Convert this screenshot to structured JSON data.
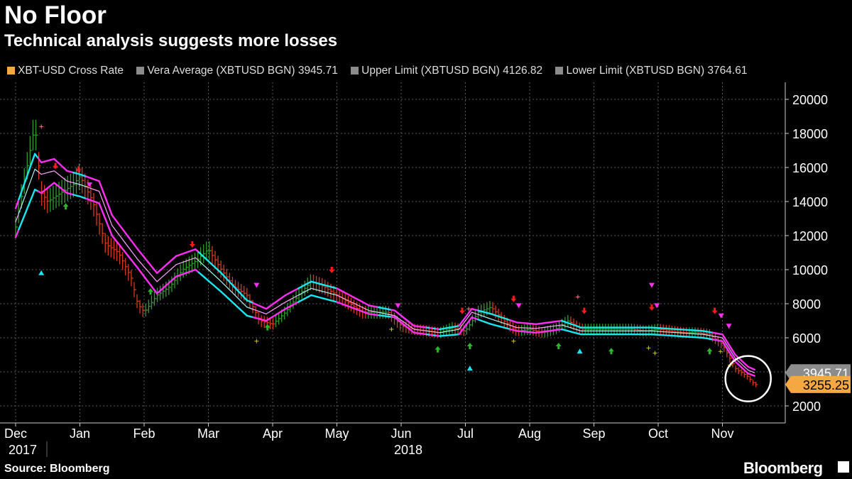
{
  "chart_data": {
    "type": "line",
    "title": "No Floor",
    "subtitle": "Technical analysis suggests more losses",
    "source": "Source: Bloomberg",
    "brand": "Bloomberg",
    "legend": [
      {
        "label": "XBT-USD Cross Rate",
        "color": "#f5a742"
      },
      {
        "label": "Vera Average (XBTUSD BGN) 3945.71",
        "color": "#8c8c8c"
      },
      {
        "label": "Upper Limit (XBTUSD BGN) 4126.82",
        "color": "#8c8c8c"
      },
      {
        "label": "Lower Limit (XBTUSD BGN) 3764.61",
        "color": "#8c8c8c"
      }
    ],
    "y_ticks": [
      2000,
      4000,
      6000,
      8000,
      10000,
      12000,
      14000,
      16000,
      18000,
      20000
    ],
    "y_tick_labels": [
      "2000",
      "4000",
      "6000",
      "8000",
      "10000",
      "12000",
      "14000",
      "16000",
      "18000",
      "20000"
    ],
    "ylim": [
      1000,
      21000
    ],
    "x_range": [
      0,
      11.6
    ],
    "x_months": [
      {
        "label": "Dec",
        "pos": 0
      },
      {
        "label": "Jan",
        "pos": 1
      },
      {
        "label": "Feb",
        "pos": 2
      },
      {
        "label": "Mar",
        "pos": 3
      },
      {
        "label": "Apr",
        "pos": 4
      },
      {
        "label": "May",
        "pos": 5
      },
      {
        "label": "Jun",
        "pos": 6
      },
      {
        "label": "Jul",
        "pos": 7
      },
      {
        "label": "Aug",
        "pos": 8
      },
      {
        "label": "Sep",
        "pos": 9
      },
      {
        "label": "Oct",
        "pos": 10
      },
      {
        "label": "Nov",
        "pos": 11
      }
    ],
    "year_labels": [
      {
        "label": "2017",
        "pos": 0
      },
      {
        "label": "2018",
        "pos": 6
      }
    ],
    "last_values": [
      {
        "label": "3945.71",
        "value": 3945.71,
        "color": "#8c8c8c"
      },
      {
        "label": "3255.25",
        "value": 3255.25,
        "color": "#f5a742"
      }
    ],
    "circle_highlight": {
      "x": 11.4,
      "y": 3600
    },
    "colors": {
      "upper": "#ff2ef2",
      "vera": "#ffa0ff",
      "lower": "#ff2ef2",
      "upper_bull": "#19e6ee",
      "vera_bull": "#a8f5f5",
      "lower_bull": "#19e6ee",
      "up_bar": "#2e9e2e",
      "down_bar": "#d93a1e",
      "grid": "#5a5a5a"
    },
    "series": [
      {
        "name": "Upper Limit",
        "x": [
          0,
          0.3,
          0.4,
          0.6,
          0.8,
          1.0,
          1.3,
          1.5,
          1.9,
          2.2,
          2.5,
          2.8,
          3.2,
          3.6,
          3.9,
          4.2,
          4.6,
          5.0,
          5.5,
          5.9,
          6.2,
          6.6,
          6.9,
          7.1,
          7.4,
          7.8,
          8.1,
          8.5,
          8.8,
          9.2,
          9.6,
          9.9,
          10.3,
          10.7,
          11.0,
          11.2,
          11.4,
          11.5
        ],
        "values": [
          13600,
          16800,
          16300,
          16500,
          15800,
          15600,
          15200,
          13200,
          11200,
          9800,
          10800,
          11200,
          9800,
          8200,
          7700,
          8500,
          9300,
          8900,
          7900,
          7600,
          6700,
          6500,
          6700,
          7700,
          7400,
          6900,
          6800,
          7000,
          6600,
          6600,
          6600,
          6600,
          6500,
          6400,
          6200,
          5000,
          4300,
          4130
        ]
      },
      {
        "name": "Vera Average",
        "x": [
          0,
          0.3,
          0.4,
          0.6,
          0.8,
          1.0,
          1.3,
          1.5,
          1.9,
          2.2,
          2.5,
          2.8,
          3.2,
          3.6,
          3.9,
          4.2,
          4.6,
          5.0,
          5.5,
          5.9,
          6.2,
          6.6,
          6.9,
          7.1,
          7.4,
          7.8,
          8.1,
          8.5,
          8.8,
          9.2,
          9.6,
          9.9,
          10.3,
          10.7,
          11.0,
          11.2,
          11.4,
          11.5
        ],
        "values": [
          12800,
          15900,
          15600,
          15800,
          15200,
          15000,
          14600,
          12600,
          10600,
          9300,
          10300,
          10700,
          9300,
          7800,
          7400,
          8100,
          8900,
          8500,
          7600,
          7300,
          6500,
          6300,
          6500,
          7500,
          7100,
          6600,
          6550,
          6750,
          6400,
          6400,
          6400,
          6400,
          6300,
          6200,
          6000,
          4800,
          4100,
          3946
        ]
      },
      {
        "name": "Lower Limit",
        "x": [
          0,
          0.3,
          0.4,
          0.6,
          0.8,
          1.0,
          1.3,
          1.5,
          1.9,
          2.2,
          2.5,
          2.8,
          3.2,
          3.6,
          3.9,
          4.2,
          4.6,
          5.0,
          5.5,
          5.9,
          6.2,
          6.6,
          6.9,
          7.1,
          7.4,
          7.8,
          8.1,
          8.5,
          8.8,
          9.2,
          9.6,
          9.9,
          10.3,
          10.7,
          11.0,
          11.2,
          11.4,
          11.5
        ],
        "values": [
          11900,
          14700,
          14500,
          15100,
          14500,
          14300,
          13900,
          12000,
          10100,
          8600,
          9600,
          10000,
          8700,
          7300,
          7000,
          7700,
          8500,
          8100,
          7400,
          7200,
          6300,
          6100,
          6200,
          7200,
          6800,
          6400,
          6300,
          6500,
          6200,
          6200,
          6200,
          6200,
          6100,
          6000,
          5800,
          4600,
          3900,
          3765
        ]
      },
      {
        "name": "XBT-USD Cross Rate",
        "x": [
          0,
          0.2,
          0.3,
          0.4,
          0.5,
          0.7,
          0.9,
          1.0,
          1.2,
          1.4,
          1.6,
          1.8,
          1.9,
          2.0,
          2.2,
          2.4,
          2.6,
          2.8,
          3.0,
          3.2,
          3.4,
          3.6,
          3.8,
          4.0,
          4.2,
          4.4,
          4.6,
          4.8,
          5.0,
          5.2,
          5.4,
          5.6,
          5.8,
          6.0,
          6.2,
          6.4,
          6.6,
          6.8,
          7.0,
          7.2,
          7.4,
          7.6,
          7.8,
          8.0,
          8.2,
          8.4,
          8.6,
          8.8,
          9.0,
          9.2,
          9.4,
          9.6,
          9.8,
          10.0,
          10.2,
          10.4,
          10.6,
          10.8,
          11.0,
          11.2,
          11.4,
          11.5
        ],
        "values": [
          12500,
          16500,
          18500,
          14500,
          14000,
          14500,
          15000,
          15500,
          14000,
          11500,
          11000,
          9500,
          8000,
          7500,
          8500,
          9000,
          10000,
          10500,
          11200,
          10000,
          9000,
          8500,
          7000,
          6800,
          7500,
          8500,
          9300,
          9000,
          8500,
          8000,
          7500,
          7500,
          7500,
          6700,
          6500,
          6400,
          6300,
          6600,
          6400,
          7500,
          7800,
          7000,
          6400,
          6500,
          6300,
          6500,
          7000,
          6500,
          6500,
          6500,
          6500,
          6500,
          6400,
          6500,
          6400,
          6300,
          6300,
          6200,
          5600,
          4200,
          3700,
          3255
        ]
      }
    ],
    "markers": [
      {
        "x": 0.4,
        "y": 9800,
        "shape": "tri-up",
        "color": "#19e6ee"
      },
      {
        "x": 0.4,
        "y": 18400,
        "shape": "plus",
        "color": "#f08080"
      },
      {
        "x": 0.62,
        "y": 16100,
        "shape": "arrow-down",
        "color": "#ff1a1a"
      },
      {
        "x": 0.98,
        "y": 15900,
        "shape": "arrow-down",
        "color": "#ff1a1a"
      },
      {
        "x": 0.78,
        "y": 13700,
        "shape": "arrow-up",
        "color": "#2ab82a"
      },
      {
        "x": 1.15,
        "y": 15000,
        "shape": "tri-down",
        "color": "#ff2ef2"
      },
      {
        "x": 2.1,
        "y": 8700,
        "shape": "arrow-up",
        "color": "#2ab82a"
      },
      {
        "x": 2.75,
        "y": 11500,
        "shape": "arrow-down",
        "color": "#ff1a1a"
      },
      {
        "x": 3.75,
        "y": 9100,
        "shape": "tri-down",
        "color": "#ff2ef2"
      },
      {
        "x": 3.92,
        "y": 6600,
        "shape": "arrow-up",
        "color": "#2ab82a"
      },
      {
        "x": 3.75,
        "y": 5800,
        "shape": "plus",
        "color": "#c9c900"
      },
      {
        "x": 4.92,
        "y": 10000,
        "shape": "arrow-down",
        "color": "#ff1a1a"
      },
      {
        "x": 5.95,
        "y": 7900,
        "shape": "tri-down",
        "color": "#ff2ef2"
      },
      {
        "x": 5.85,
        "y": 6500,
        "shape": "plus",
        "color": "#c9c900"
      },
      {
        "x": 6.57,
        "y": 5300,
        "shape": "arrow-up",
        "color": "#2ab82a"
      },
      {
        "x": 6.95,
        "y": 7600,
        "shape": "arrow-down",
        "color": "#ff1a1a"
      },
      {
        "x": 7.05,
        "y": 7700,
        "shape": "plus",
        "color": "#f08080"
      },
      {
        "x": 7.07,
        "y": 5500,
        "shape": "arrow-up",
        "color": "#2ab82a"
      },
      {
        "x": 7.07,
        "y": 4200,
        "shape": "tri-up",
        "color": "#19e6ee"
      },
      {
        "x": 7.75,
        "y": 8300,
        "shape": "arrow-down",
        "color": "#ff1a1a"
      },
      {
        "x": 7.83,
        "y": 7900,
        "shape": "tri-down",
        "color": "#ff2ef2"
      },
      {
        "x": 7.75,
        "y": 5800,
        "shape": "plus",
        "color": "#c9c900"
      },
      {
        "x": 8.45,
        "y": 5500,
        "shape": "arrow-up",
        "color": "#2ab82a"
      },
      {
        "x": 8.75,
        "y": 8400,
        "shape": "plus",
        "color": "#f08080"
      },
      {
        "x": 8.85,
        "y": 7600,
        "shape": "arrow-down",
        "color": "#ff1a1a"
      },
      {
        "x": 8.78,
        "y": 5200,
        "shape": "tri-up",
        "color": "#19e6ee"
      },
      {
        "x": 9.27,
        "y": 5200,
        "shape": "arrow-up",
        "color": "#2ab82a"
      },
      {
        "x": 9.9,
        "y": 9100,
        "shape": "tri-down",
        "color": "#ff2ef2"
      },
      {
        "x": 9.9,
        "y": 7800,
        "shape": "arrow-down",
        "color": "#ff1a1a"
      },
      {
        "x": 9.98,
        "y": 7900,
        "shape": "tri-down",
        "color": "#ff2ef2"
      },
      {
        "x": 9.85,
        "y": 5400,
        "shape": "plus",
        "color": "#c9c900"
      },
      {
        "x": 9.95,
        "y": 5100,
        "shape": "plus",
        "color": "#c9c900"
      },
      {
        "x": 10.8,
        "y": 5200,
        "shape": "arrow-up",
        "color": "#2ab82a"
      },
      {
        "x": 10.88,
        "y": 7600,
        "shape": "arrow-down",
        "color": "#ff1a1a"
      },
      {
        "x": 10.98,
        "y": 7300,
        "shape": "tri-down",
        "color": "#ff2ef2"
      },
      {
        "x": 11.1,
        "y": 6700,
        "shape": "tri-down",
        "color": "#ff2ef2"
      },
      {
        "x": 10.97,
        "y": 5200,
        "shape": "plus",
        "color": "#c9c900"
      },
      {
        "x": 11.12,
        "y": 4400,
        "shape": "plus",
        "color": "#c9c900"
      }
    ]
  }
}
